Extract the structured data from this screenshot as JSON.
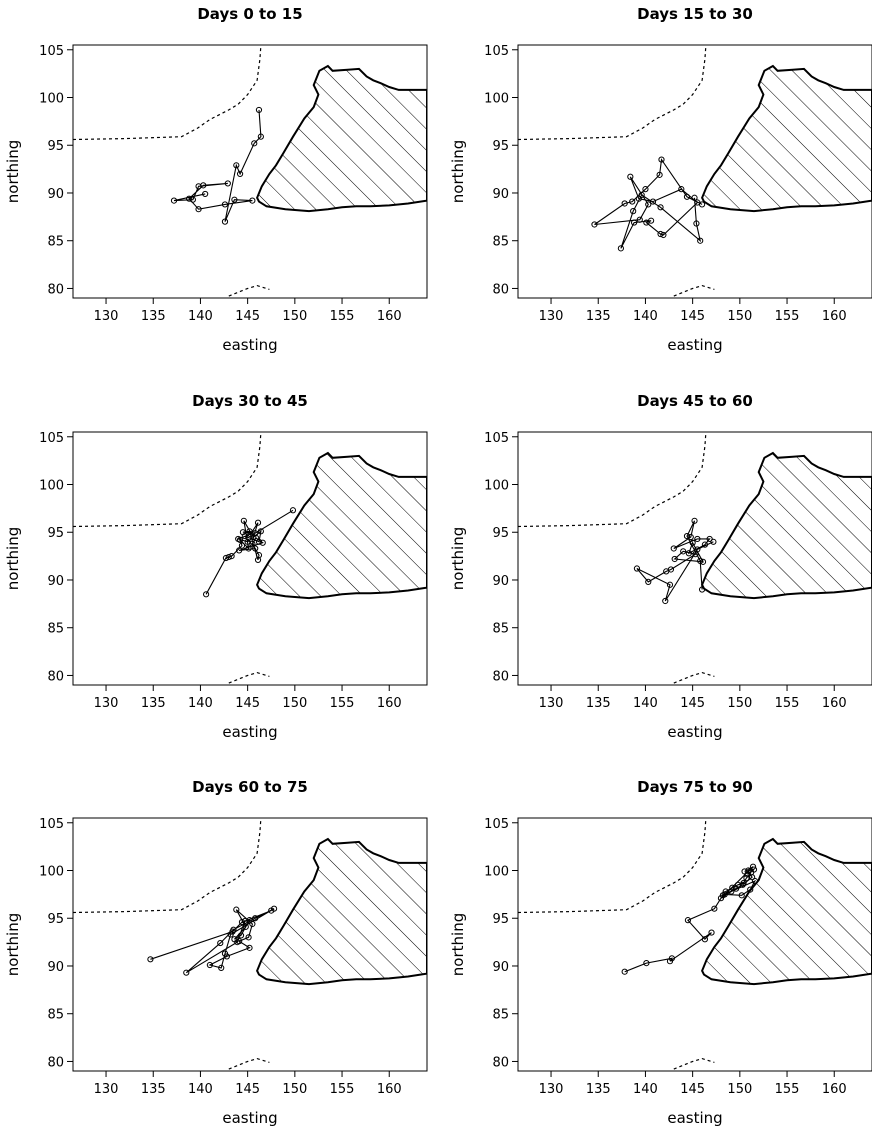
{
  "colors": {
    "ink": "#000000",
    "background": "#ffffff",
    "land_hatch": "#000000"
  },
  "chart_data": [
    {
      "type": "scatter",
      "title": "Days  0  to 15",
      "xlabel": "easting",
      "ylabel": "northing",
      "xlim": [
        126.5,
        164
      ],
      "ylim": [
        79,
        105.5
      ],
      "xticks": [
        130,
        135,
        140,
        145,
        150,
        155,
        160
      ],
      "yticks": [
        80,
        85,
        90,
        95,
        100,
        105
      ],
      "series": [
        {
          "points": [
            [
              146.2,
              98.7
            ],
            [
              146.4,
              95.9
            ],
            [
              145.7,
              95.2
            ],
            [
              144.2,
              92.0
            ],
            [
              143.8,
              92.9
            ],
            [
              142.6,
              87.0
            ],
            [
              143.6,
              89.3
            ],
            [
              145.5,
              89.2
            ],
            [
              142.6,
              88.8
            ],
            [
              139.8,
              88.3
            ],
            [
              138.8,
              89.4
            ],
            [
              140.3,
              90.8
            ],
            [
              142.9,
              91.0
            ],
            [
              139.8,
              90.7
            ],
            [
              139.2,
              89.3
            ],
            [
              137.2,
              89.2
            ],
            [
              140.5,
              89.9
            ]
          ]
        }
      ]
    },
    {
      "type": "scatter",
      "title": "Days  15  to 30",
      "xlabel": "easting",
      "ylabel": "northing",
      "xlim": [
        126.5,
        164
      ],
      "ylim": [
        79,
        105.5
      ],
      "xticks": [
        130,
        135,
        140,
        145,
        150,
        155,
        160
      ],
      "yticks": [
        80,
        85,
        90,
        95,
        100,
        105
      ],
      "series": [
        {
          "points": [
            [
              146.0,
              88.8
            ],
            [
              144.4,
              89.6
            ],
            [
              141.7,
              93.5
            ],
            [
              141.5,
              91.9
            ],
            [
              140.0,
              90.4
            ],
            [
              138.6,
              89.1
            ],
            [
              137.8,
              88.9
            ],
            [
              134.6,
              86.7
            ],
            [
              139.4,
              87.2
            ],
            [
              140.3,
              88.8
            ],
            [
              138.4,
              91.7
            ],
            [
              139.3,
              89.4
            ],
            [
              140.8,
              89.1
            ],
            [
              143.8,
              90.4
            ],
            [
              145.5,
              89.0
            ],
            [
              141.9,
              85.6
            ],
            [
              141.6,
              85.7
            ],
            [
              140.1,
              86.9
            ],
            [
              140.6,
              87.1
            ],
            [
              138.8,
              86.9
            ],
            [
              137.4,
              84.2
            ],
            [
              138.7,
              88.1
            ],
            [
              139.6,
              89.8
            ],
            [
              141.6,
              88.5
            ],
            [
              145.8,
              85.0
            ],
            [
              145.4,
              86.8
            ],
            [
              145.2,
              89.5
            ]
          ]
        }
      ]
    },
    {
      "type": "scatter",
      "title": "Days  30  to 45",
      "xlabel": "easting",
      "ylabel": "northing",
      "xlim": [
        126.5,
        164
      ],
      "ylim": [
        79,
        105.5
      ],
      "xticks": [
        130,
        135,
        140,
        145,
        150,
        155,
        160
      ],
      "yticks": [
        80,
        85,
        90,
        95,
        100,
        105
      ],
      "series": [
        {
          "points": [
            [
              140.6,
              88.5
            ],
            [
              142.7,
              92.3
            ],
            [
              143.0,
              92.4
            ],
            [
              143.3,
              92.5
            ],
            [
              144.4,
              93.6
            ],
            [
              144.2,
              94.2
            ],
            [
              145.1,
              93.3
            ],
            [
              144.6,
              96.2
            ],
            [
              145.6,
              94.5
            ],
            [
              146.1,
              96.0
            ],
            [
              145.3,
              94.8
            ],
            [
              144.0,
              94.3
            ],
            [
              145.0,
              94.0
            ],
            [
              146.4,
              95.1
            ],
            [
              146.2,
              94.0
            ],
            [
              144.7,
              94.6
            ],
            [
              145.8,
              93.3
            ],
            [
              144.1,
              93.1
            ],
            [
              146.6,
              93.9
            ],
            [
              145.9,
              94.4
            ],
            [
              145.5,
              93.8
            ],
            [
              146.2,
              92.6
            ],
            [
              146.1,
              92.1
            ],
            [
              145.2,
              95.1
            ],
            [
              144.5,
              95.0
            ],
            [
              145.8,
              94.9
            ],
            [
              149.8,
              97.3
            ]
          ]
        }
      ]
    },
    {
      "type": "scatter",
      "title": "Days  45  to 60",
      "xlabel": "easting",
      "ylabel": "northing",
      "xlim": [
        126.5,
        164
      ],
      "ylim": [
        79,
        105.5
      ],
      "xticks": [
        130,
        135,
        140,
        145,
        150,
        155,
        160
      ],
      "yticks": [
        80,
        85,
        90,
        95,
        100,
        105
      ],
      "series": [
        {
          "points": [
            [
              146.0,
              89.0
            ],
            [
              145.8,
              92.0
            ],
            [
              144.4,
              94.6
            ],
            [
              145.2,
              96.2
            ],
            [
              144.8,
              94.5
            ],
            [
              143.0,
              93.3
            ],
            [
              145.5,
              94.3
            ],
            [
              146.8,
              94.3
            ],
            [
              146.3,
              93.7
            ],
            [
              144.6,
              92.8
            ],
            [
              145.0,
              93.9
            ],
            [
              146.1,
              91.9
            ],
            [
              143.1,
              92.2
            ],
            [
              144.0,
              93.0
            ],
            [
              145.3,
              92.7
            ],
            [
              142.7,
              91.1
            ],
            [
              142.2,
              90.9
            ],
            [
              140.3,
              89.8
            ],
            [
              139.1,
              91.2
            ],
            [
              142.6,
              89.5
            ],
            [
              142.1,
              87.8
            ],
            [
              145.5,
              93.2
            ],
            [
              147.2,
              94.0
            ]
          ]
        }
      ]
    },
    {
      "type": "scatter",
      "title": "Days  60  to 75",
      "xlabel": "easting",
      "ylabel": "northing",
      "xlim": [
        126.5,
        164
      ],
      "ylim": [
        79,
        105.5
      ],
      "xticks": [
        130,
        135,
        140,
        145,
        150,
        155,
        160
      ],
      "yticks": [
        80,
        85,
        90,
        95,
        100,
        105
      ],
      "series": [
        {
          "points": [
            [
              134.7,
              90.7
            ],
            [
              143.4,
              93.6
            ],
            [
              144.4,
              94.6
            ],
            [
              145.2,
              94.8
            ],
            [
              144.3,
              93.2
            ],
            [
              143.6,
              92.8
            ],
            [
              144.8,
              94.1
            ],
            [
              143.8,
              95.9
            ],
            [
              145.5,
              94.4
            ],
            [
              145.1,
              93.0
            ],
            [
              144.1,
              92.6
            ],
            [
              145.2,
              91.9
            ],
            [
              142.8,
              91.0
            ],
            [
              141.0,
              90.1
            ],
            [
              142.2,
              89.8
            ],
            [
              142.6,
              91.3
            ],
            [
              143.2,
              93.3
            ],
            [
              147.8,
              96.0
            ],
            [
              145.8,
              95.0
            ],
            [
              143.5,
              93.8
            ],
            [
              142.1,
              92.4
            ],
            [
              138.5,
              89.3
            ],
            [
              143.9,
              92.5
            ],
            [
              144.7,
              94.7
            ],
            [
              147.5,
              95.8
            ]
          ]
        }
      ]
    },
    {
      "type": "scatter",
      "title": "Days  75  to 90",
      "xlabel": "easting",
      "ylabel": "northing",
      "xlim": [
        126.5,
        164
      ],
      "ylim": [
        79,
        105.5
      ],
      "xticks": [
        130,
        135,
        140,
        145,
        150,
        155,
        160
      ],
      "yticks": [
        80,
        85,
        90,
        95,
        100,
        105
      ],
      "series": [
        {
          "points": [
            [
              137.8,
              89.4
            ],
            [
              140.1,
              90.3
            ],
            [
              142.8,
              90.8
            ],
            [
              142.6,
              90.5
            ],
            [
              147.0,
              93.5
            ],
            [
              146.3,
              92.8
            ],
            [
              144.5,
              94.8
            ],
            [
              147.3,
              96.0
            ],
            [
              148.2,
              97.4
            ],
            [
              148.5,
              97.8
            ],
            [
              149.2,
              98.2
            ],
            [
              149.8,
              98.5
            ],
            [
              150.4,
              98.7
            ],
            [
              150.7,
              99.2
            ],
            [
              151.2,
              99.8
            ],
            [
              150.8,
              99.6
            ],
            [
              151.5,
              100.1
            ],
            [
              150.9,
              100.0
            ],
            [
              151.3,
              99.3
            ],
            [
              150.3,
              98.5
            ],
            [
              149.6,
              98.1
            ],
            [
              148.4,
              97.5
            ],
            [
              150.2,
              97.4
            ],
            [
              151.1,
              98.0
            ],
            [
              151.6,
              98.9
            ],
            [
              149.1,
              97.8
            ],
            [
              148.0,
              97.1
            ],
            [
              151.4,
              100.4
            ],
            [
              150.5,
              99.9
            ]
          ]
        }
      ]
    }
  ]
}
